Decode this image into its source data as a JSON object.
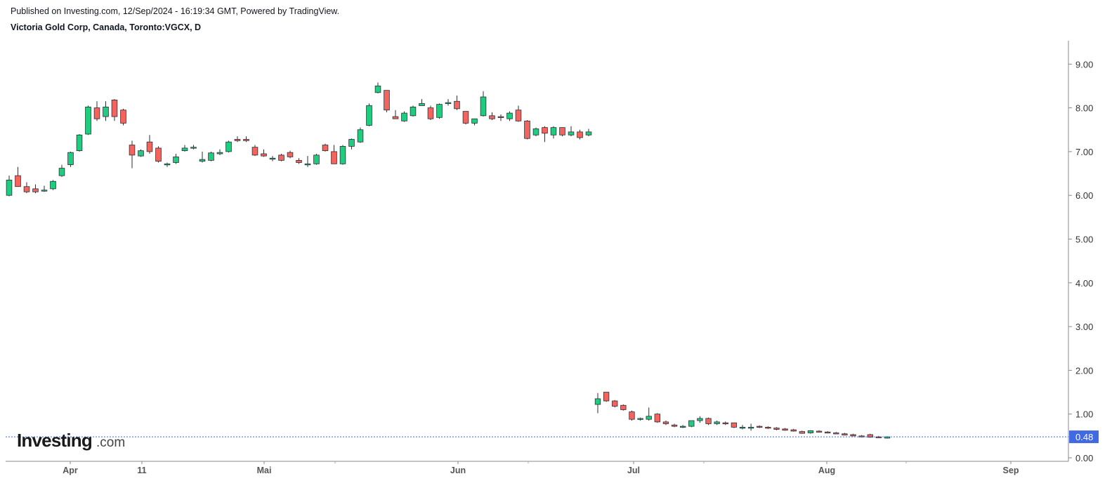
{
  "header": {
    "published": "Published on Investing.com, 12/Sep/2024 - 16:19:34 GMT, Powered by TradingView.",
    "symbol": "Victoria Gold Corp, Canada, Toronto:VGCX, D"
  },
  "logo": {
    "main": "Investing",
    "suffix": ".com"
  },
  "colors": {
    "up": "#1fcd7e",
    "down": "#f4645c",
    "outline": "#2a2e39",
    "last_price": "#4169e1"
  },
  "chart_data": {
    "type": "candlestick",
    "title": "Victoria Gold Corp, Canada, Toronto:VGCX, D",
    "ylim": [
      0,
      9.6
    ],
    "y_ticks": [
      "9.00",
      "8.00",
      "7.00",
      "6.00",
      "5.00",
      "4.00",
      "3.00",
      "2.00",
      "1.00",
      "0.00"
    ],
    "x_tick_labels": [
      "Apr",
      "11",
      "Mai",
      "Jun",
      "Jul",
      "Aug",
      "Sep"
    ],
    "last_price": "0.48",
    "segment1": [
      [
        6.0,
        6.45,
        5.98,
        6.35
      ],
      [
        6.45,
        6.65,
        6.2,
        6.2
      ],
      [
        6.2,
        6.3,
        6.05,
        6.08
      ],
      [
        6.15,
        6.25,
        6.05,
        6.08
      ],
      [
        6.1,
        6.22,
        6.08,
        6.12
      ],
      [
        6.15,
        6.35,
        6.12,
        6.32
      ],
      [
        6.45,
        6.7,
        6.42,
        6.62
      ],
      [
        6.7,
        7.0,
        6.65,
        6.98
      ],
      [
        7.02,
        7.4,
        7.0,
        7.38
      ],
      [
        7.4,
        8.05,
        7.38,
        8.02
      ],
      [
        8.0,
        8.15,
        7.7,
        7.75
      ],
      [
        7.8,
        8.15,
        7.7,
        8.02
      ],
      [
        8.18,
        8.2,
        7.7,
        7.8
      ],
      [
        7.95,
        7.98,
        7.6,
        7.65
      ],
      [
        7.15,
        7.25,
        6.62,
        6.92
      ],
      [
        6.9,
        7.05,
        6.88,
        7.02
      ],
      [
        7.22,
        7.38,
        6.95,
        7.0
      ],
      [
        7.08,
        7.12,
        6.75,
        6.78
      ],
      [
        6.72,
        6.75,
        6.65,
        6.72
      ],
      [
        6.75,
        6.95,
        6.72,
        6.88
      ],
      [
        7.02,
        7.15,
        7.0,
        7.08
      ],
      [
        7.08,
        7.15,
        7.05,
        7.1
      ],
      [
        6.78,
        7.0,
        6.75,
        6.82
      ],
      [
        6.8,
        7.0,
        6.78,
        6.97
      ],
      [
        6.95,
        7.05,
        6.92,
        6.98
      ],
      [
        7.0,
        7.25,
        6.98,
        7.22
      ],
      [
        7.28,
        7.35,
        7.22,
        7.25
      ],
      [
        7.28,
        7.35,
        7.22,
        7.25
      ],
      [
        7.1,
        7.15,
        6.9,
        6.92
      ],
      [
        6.95,
        7.05,
        6.88,
        6.9
      ],
      [
        6.85,
        6.9,
        6.78,
        6.85
      ],
      [
        6.92,
        6.95,
        6.78,
        6.8
      ],
      [
        6.98,
        7.02,
        6.85,
        6.88
      ],
      [
        6.8,
        6.85,
        6.72,
        6.75
      ],
      [
        6.72,
        6.9,
        6.65,
        6.72
      ],
      [
        6.72,
        6.95,
        6.7,
        6.92
      ],
      [
        7.15,
        7.18,
        7.0,
        7.02
      ],
      [
        7.0,
        7.15,
        6.72,
        6.72
      ],
      [
        6.72,
        7.15,
        6.7,
        7.12
      ],
      [
        7.12,
        7.3,
        7.05,
        7.28
      ],
      [
        7.22,
        7.55,
        7.2,
        7.5
      ],
      [
        7.6,
        8.1,
        7.58,
        8.05
      ],
      [
        8.35,
        8.58,
        8.33,
        8.5
      ],
      [
        8.4,
        8.4,
        7.9,
        7.95
      ],
      [
        7.8,
        7.95,
        7.75,
        7.75
      ],
      [
        7.7,
        7.92,
        7.68,
        7.88
      ],
      [
        7.82,
        8.05,
        7.8,
        8.02
      ],
      [
        8.05,
        8.2,
        8.05,
        8.1
      ],
      [
        8.0,
        8.05,
        7.72,
        7.75
      ],
      [
        7.78,
        8.1,
        7.75,
        8.08
      ],
      [
        8.1,
        8.2,
        8.05,
        8.12
      ],
      [
        8.15,
        8.28,
        7.95,
        7.98
      ],
      [
        7.92,
        7.92,
        7.62,
        7.65
      ],
      [
        7.65,
        7.75,
        7.6,
        7.75
      ],
      [
        7.82,
        8.38,
        7.8,
        8.25
      ],
      [
        7.82,
        7.9,
        7.72,
        7.75
      ],
      [
        7.8,
        7.85,
        7.7,
        7.78
      ],
      [
        7.75,
        7.92,
        7.7,
        7.88
      ],
      [
        7.95,
        8.05,
        7.68,
        7.7
      ],
      [
        7.7,
        7.72,
        7.28,
        7.3
      ],
      [
        7.38,
        7.55,
        7.35,
        7.52
      ],
      [
        7.55,
        7.58,
        7.22,
        7.42
      ],
      [
        7.38,
        7.58,
        7.3,
        7.55
      ],
      [
        7.55,
        7.55,
        7.35,
        7.38
      ],
      [
        7.38,
        7.58,
        7.35,
        7.45
      ],
      [
        7.45,
        7.5,
        7.28,
        7.32
      ],
      [
        7.38,
        7.52,
        7.35,
        7.45
      ]
    ],
    "segment2": [
      [
        1.22,
        1.48,
        1.02,
        1.35
      ],
      [
        1.5,
        1.5,
        1.28,
        1.3
      ],
      [
        1.3,
        1.32,
        1.15,
        1.18
      ],
      [
        1.2,
        1.22,
        1.08,
        1.1
      ],
      [
        1.05,
        1.08,
        0.85,
        0.88
      ],
      [
        0.88,
        0.92,
        0.85,
        0.9
      ],
      [
        0.88,
        1.15,
        0.85,
        0.95
      ],
      [
        1.0,
        1.02,
        0.8,
        0.82
      ],
      [
        0.82,
        0.85,
        0.75,
        0.78
      ],
      [
        0.75,
        0.78,
        0.7,
        0.72
      ],
      [
        0.72,
        0.75,
        0.68,
        0.72
      ],
      [
        0.72,
        0.85,
        0.7,
        0.85
      ],
      [
        0.85,
        0.95,
        0.8,
        0.9
      ],
      [
        0.9,
        0.92,
        0.75,
        0.78
      ],
      [
        0.78,
        0.85,
        0.75,
        0.82
      ],
      [
        0.8,
        0.83,
        0.75,
        0.78
      ],
      [
        0.8,
        0.8,
        0.68,
        0.7
      ],
      [
        0.68,
        0.75,
        0.65,
        0.7
      ],
      [
        0.68,
        0.78,
        0.62,
        0.7
      ],
      [
        0.72,
        0.74,
        0.68,
        0.7
      ],
      [
        0.7,
        0.72,
        0.66,
        0.68
      ],
      [
        0.68,
        0.7,
        0.63,
        0.65
      ],
      [
        0.66,
        0.68,
        0.62,
        0.63
      ],
      [
        0.64,
        0.66,
        0.6,
        0.61
      ],
      [
        0.6,
        0.62,
        0.55,
        0.56
      ],
      [
        0.57,
        0.63,
        0.55,
        0.62
      ],
      [
        0.61,
        0.63,
        0.58,
        0.59
      ],
      [
        0.59,
        0.61,
        0.56,
        0.57
      ],
      [
        0.57,
        0.59,
        0.54,
        0.55
      ],
      [
        0.55,
        0.57,
        0.51,
        0.52
      ],
      [
        0.53,
        0.55,
        0.49,
        0.5
      ],
      [
        0.5,
        0.52,
        0.47,
        0.48
      ],
      [
        0.53,
        0.55,
        0.46,
        0.47
      ],
      [
        0.48,
        0.5,
        0.45,
        0.46
      ],
      [
        0.45,
        0.49,
        0.44,
        0.48
      ]
    ]
  }
}
